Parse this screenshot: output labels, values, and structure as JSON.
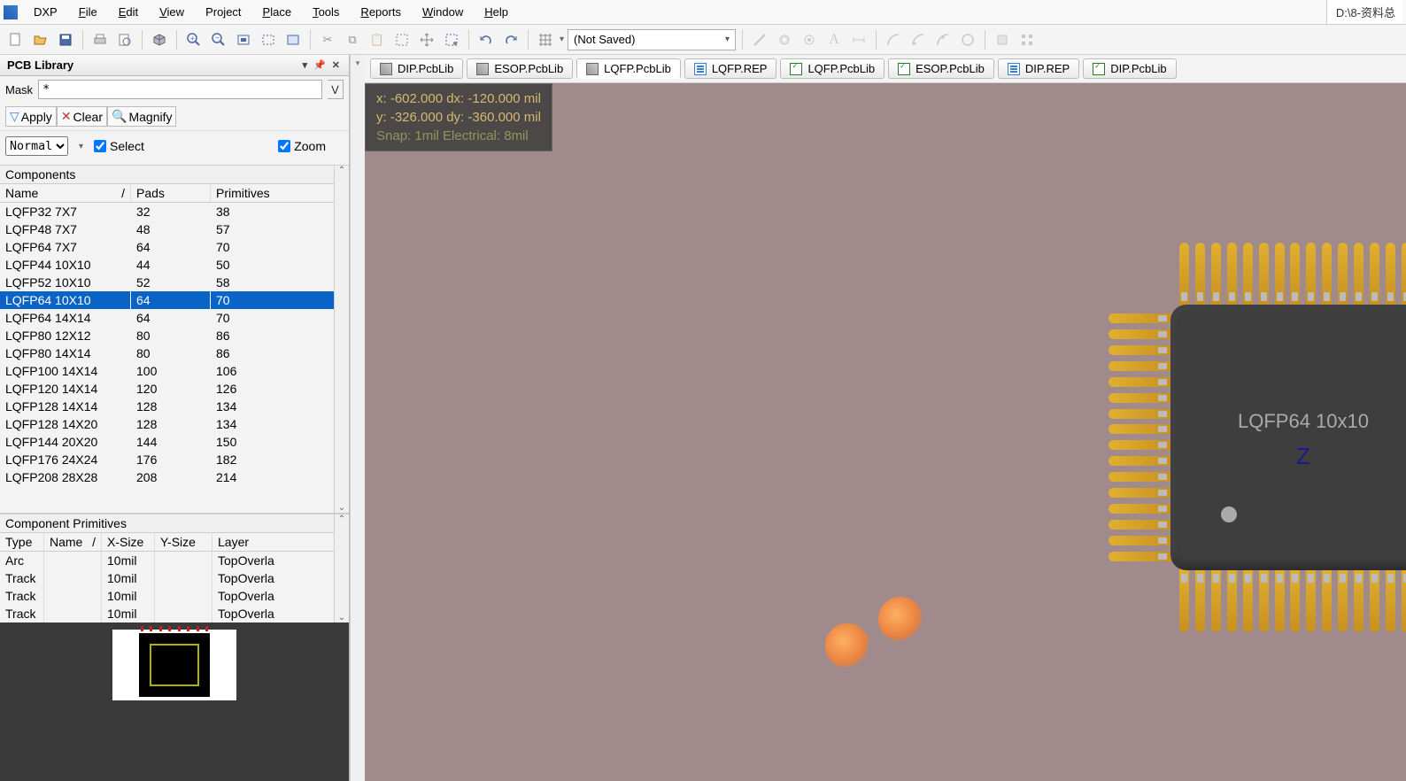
{
  "menu": {
    "items": [
      "DXP",
      "File",
      "Edit",
      "View",
      "Project",
      "Place",
      "Tools",
      "Reports",
      "Window",
      "Help"
    ],
    "underline_idx": [
      null,
      0,
      0,
      0,
      3,
      0,
      0,
      0,
      0,
      0
    ]
  },
  "title_path": "D:\\8-资料总",
  "toolbar_combo": "(Not Saved)",
  "panel_title": "PCB Library",
  "mask_label": "Mask",
  "mask_value": "*",
  "filters": {
    "apply": "Apply",
    "clear": "Clear",
    "magnify": "Magnify"
  },
  "view_mode": "Normal",
  "chk_select": "Select",
  "chk_zoom": "Zoom",
  "components": {
    "group_header": "Components",
    "cols": [
      "Name",
      "Pads",
      "Primitives"
    ],
    "selected_idx": 5,
    "rows": [
      [
        "LQFP32 7X7",
        "32",
        "38"
      ],
      [
        "LQFP48 7X7",
        "48",
        "57"
      ],
      [
        "LQFP64 7X7",
        "64",
        "70"
      ],
      [
        "LQFP44 10X10",
        "44",
        "50"
      ],
      [
        "LQFP52 10X10",
        "52",
        "58"
      ],
      [
        "LQFP64 10X10",
        "64",
        "70"
      ],
      [
        "LQFP64 14X14",
        "64",
        "70"
      ],
      [
        "LQFP80 12X12",
        "80",
        "86"
      ],
      [
        "LQFP80 14X14",
        "80",
        "86"
      ],
      [
        "LQFP100 14X14",
        "100",
        "106"
      ],
      [
        "LQFP120 14X14",
        "120",
        "126"
      ],
      [
        "LQFP128 14X14",
        "128",
        "134"
      ],
      [
        "LQFP128 14X20",
        "128",
        "134"
      ],
      [
        "LQFP144 20X20",
        "144",
        "150"
      ],
      [
        "LQFP176 24X24",
        "176",
        "182"
      ],
      [
        "LQFP208 28X28",
        "208",
        "214"
      ]
    ]
  },
  "primitives": {
    "group_header": "Component Primitives",
    "cols": [
      "Type",
      "Name",
      "X-Size",
      "Y-Size",
      "Layer"
    ],
    "rows": [
      [
        "Arc",
        "",
        "10mil",
        "",
        "TopOverla"
      ],
      [
        "Track",
        "",
        "10mil",
        "",
        "TopOverla"
      ],
      [
        "Track",
        "",
        "10mil",
        "",
        "TopOverla"
      ],
      [
        "Track",
        "",
        "10mil",
        "",
        "TopOverla"
      ]
    ]
  },
  "tabs": [
    {
      "label": "DIP.PcbLib",
      "icon": "i-pcb"
    },
    {
      "label": "ESOP.PcbLib",
      "icon": "i-pcb"
    },
    {
      "label": "LQFP.PcbLib",
      "icon": "i-pcb",
      "active": true
    },
    {
      "label": "LQFP.REP",
      "icon": "i-rep"
    },
    {
      "label": "LQFP.PcbLib",
      "icon": "i-pcb2"
    },
    {
      "label": "ESOP.PcbLib",
      "icon": "i-pcb2"
    },
    {
      "label": "DIP.REP",
      "icon": "i-rep"
    },
    {
      "label": "DIP.PcbLib",
      "icon": "i-pcb2"
    }
  ],
  "coords": {
    "line1": "x:  -602.000   dx:  -120.000  mil",
    "line2": "y:  -326.000   dy:  -360.000  mil",
    "snap": "Snap: 1mil Electrical: 8mil"
  },
  "chip": {
    "label": "LQFP64 10x10",
    "pins_per_side": 16,
    "z": "Z"
  },
  "colors": {
    "canvas_bg": "#a08a8c",
    "chip_body": "#3e3e3e",
    "pin_gold": "#e0b030",
    "selection": "#0a64c8"
  }
}
